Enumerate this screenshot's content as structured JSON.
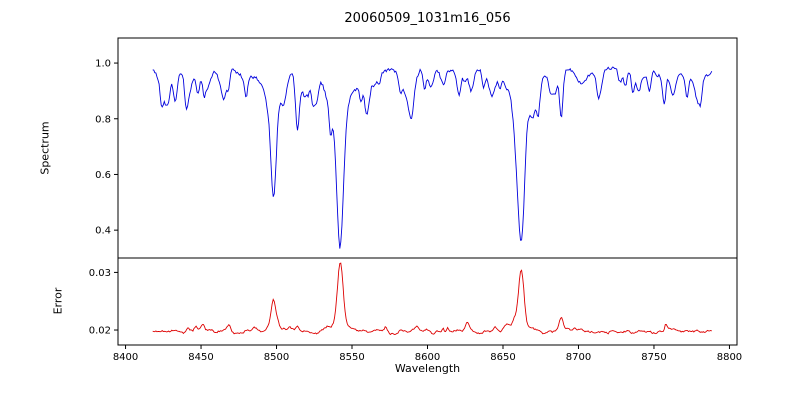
{
  "figure": {
    "title": "20060509_1031m16_056",
    "background": "#ffffff"
  },
  "chart_data": {
    "type": "line",
    "title": "20060509_1031m16_056",
    "xlabel": "Wavelength",
    "grid": false,
    "legend": null,
    "xlim": [
      8395,
      8805
    ],
    "x_range": [
      8418,
      8788
    ],
    "xticks": [
      8400,
      8450,
      8500,
      8550,
      8600,
      8650,
      8700,
      8750,
      8800
    ],
    "panels": [
      {
        "name": "spectrum",
        "ylabel": "Spectrum",
        "color": "#0000dd",
        "ylim": [
          0.3,
          1.09
        ],
        "yticks": [
          0.4,
          0.6,
          0.8,
          1.0
        ],
        "ytick_labels": [
          "0.4",
          "0.6",
          "0.8",
          "1.0"
        ],
        "continuum": 0.97,
        "noise_amplitude": 0.012,
        "major_lines": [
          {
            "center": 8498.0,
            "min_flux": 0.53,
            "core_depth": 0.38,
            "wing_depth": 0.06,
            "sigma": 1.9
          },
          {
            "center": 8542.1,
            "min_flux": 0.35,
            "core_depth": 0.5,
            "wing_depth": 0.12,
            "sigma": 2.3
          },
          {
            "center": 8662.1,
            "min_flux": 0.38,
            "core_depth": 0.48,
            "wing_depth": 0.11,
            "sigma": 2.1
          }
        ],
        "minor_lines": [
          {
            "center": 8424.0,
            "depth": 0.09,
            "sigma": 1.0
          },
          {
            "center": 8433.0,
            "depth": 0.11,
            "sigma": 1.2
          },
          {
            "center": 8440.0,
            "depth": 0.06,
            "sigma": 1.0
          },
          {
            "center": 8452.0,
            "depth": 0.05,
            "sigma": 0.9
          },
          {
            "center": 8468.0,
            "depth": 0.06,
            "sigma": 1.0
          },
          {
            "center": 8480.0,
            "depth": 0.05,
            "sigma": 0.9
          },
          {
            "center": 8514.0,
            "depth": 0.1,
            "sigma": 1.1
          },
          {
            "center": 8519.0,
            "depth": 0.07,
            "sigma": 1.0
          },
          {
            "center": 8527.0,
            "depth": 0.05,
            "sigma": 0.9
          },
          {
            "center": 8556.0,
            "depth": 0.05,
            "sigma": 0.9
          },
          {
            "center": 8568.0,
            "depth": 0.04,
            "sigma": 0.9
          },
          {
            "center": 8582.0,
            "depth": 0.06,
            "sigma": 1.0
          },
          {
            "center": 8598.0,
            "depth": 0.07,
            "sigma": 1.0
          },
          {
            "center": 8611.0,
            "depth": 0.05,
            "sigma": 0.9
          },
          {
            "center": 8621.0,
            "depth": 0.06,
            "sigma": 1.0
          },
          {
            "center": 8637.0,
            "depth": 0.05,
            "sigma": 0.9
          },
          {
            "center": 8648.0,
            "depth": 0.04,
            "sigma": 0.9
          },
          {
            "center": 8674.0,
            "depth": 0.06,
            "sigma": 1.0
          },
          {
            "center": 8688.6,
            "depth": 0.17,
            "sigma": 1.1
          },
          {
            "center": 8713.0,
            "depth": 0.05,
            "sigma": 0.9
          },
          {
            "center": 8727.0,
            "depth": 0.04,
            "sigma": 0.9
          },
          {
            "center": 8736.0,
            "depth": 0.07,
            "sigma": 1.0
          },
          {
            "center": 8747.0,
            "depth": 0.05,
            "sigma": 0.9
          },
          {
            "center": 8757.0,
            "depth": 0.06,
            "sigma": 1.0
          },
          {
            "center": 8772.0,
            "depth": 0.08,
            "sigma": 1.0
          },
          {
            "center": 8781.0,
            "depth": 0.05,
            "sigma": 0.9
          }
        ]
      },
      {
        "name": "error",
        "ylabel": "Error",
        "color": "#dd0000",
        "ylim": [
          0.0174,
          0.0325
        ],
        "yticks": [
          0.02,
          0.03
        ],
        "ytick_labels": [
          "0.02",
          "0.03"
        ],
        "baseline": 0.0197,
        "noise_amplitude": 0.0004,
        "peaks": [
          {
            "center": 8498.0,
            "height": 0.0055,
            "sigma": 1.6
          },
          {
            "center": 8514.0,
            "height": 0.001,
            "sigma": 1.0
          },
          {
            "center": 8542.1,
            "height": 0.0118,
            "sigma": 1.8
          },
          {
            "center": 8662.1,
            "height": 0.0108,
            "sigma": 1.7
          },
          {
            "center": 8688.6,
            "height": 0.0022,
            "sigma": 1.2
          }
        ]
      }
    ]
  }
}
